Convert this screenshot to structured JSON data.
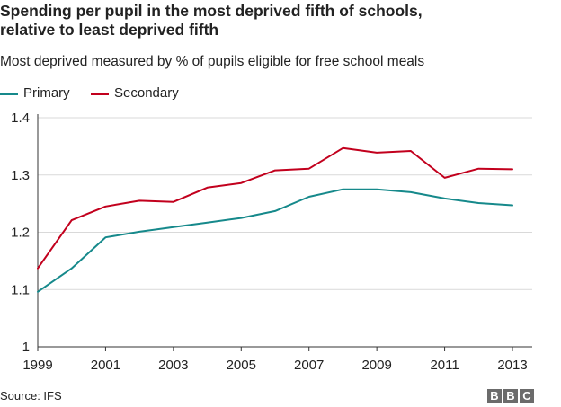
{
  "header": {
    "title_line1": "Spending per pupil in the most deprived fifth of schools,",
    "title_line2": "relative to least deprived fifth",
    "subtitle": "Most deprived measured by % of pupils eligible for free school meals"
  },
  "footer": {
    "source": "Source: IFS",
    "logo_letters": [
      "B",
      "B",
      "C"
    ]
  },
  "colors": {
    "primary": "#16898b",
    "secondary": "#c2001d",
    "grid": "#d9d9d9",
    "axis": "#333333"
  },
  "chart_data": {
    "type": "line",
    "title": "Spending per pupil in the most deprived fifth of schools, relative to least deprived fifth",
    "subtitle": "Most deprived measured by % of pupils eligible for free school meals",
    "xlabel": "",
    "ylabel": "",
    "x": [
      1999,
      2000,
      2001,
      2002,
      2003,
      2004,
      2005,
      2006,
      2007,
      2008,
      2009,
      2010,
      2011,
      2012,
      2013
    ],
    "xticks": [
      "1999",
      "2001",
      "2003",
      "2005",
      "2007",
      "2009",
      "2011",
      "2013"
    ],
    "yticks": [
      "1",
      "1.1",
      "1.2",
      "1.3",
      "1.4"
    ],
    "ylim": [
      1.0,
      1.4
    ],
    "grid": true,
    "legend_position": "top-left",
    "series": [
      {
        "name": "Primary",
        "color": "#16898b",
        "values": [
          1.096,
          1.137,
          1.191,
          1.201,
          1.209,
          1.217,
          1.225,
          1.237,
          1.262,
          1.275,
          1.275,
          1.27,
          1.259,
          1.251,
          1.247
        ]
      },
      {
        "name": "Secondary",
        "color": "#c2001d",
        "values": [
          1.137,
          1.221,
          1.245,
          1.255,
          1.253,
          1.278,
          1.286,
          1.308,
          1.311,
          1.347,
          1.339,
          1.342,
          1.295,
          1.311,
          1.31
        ]
      }
    ]
  }
}
